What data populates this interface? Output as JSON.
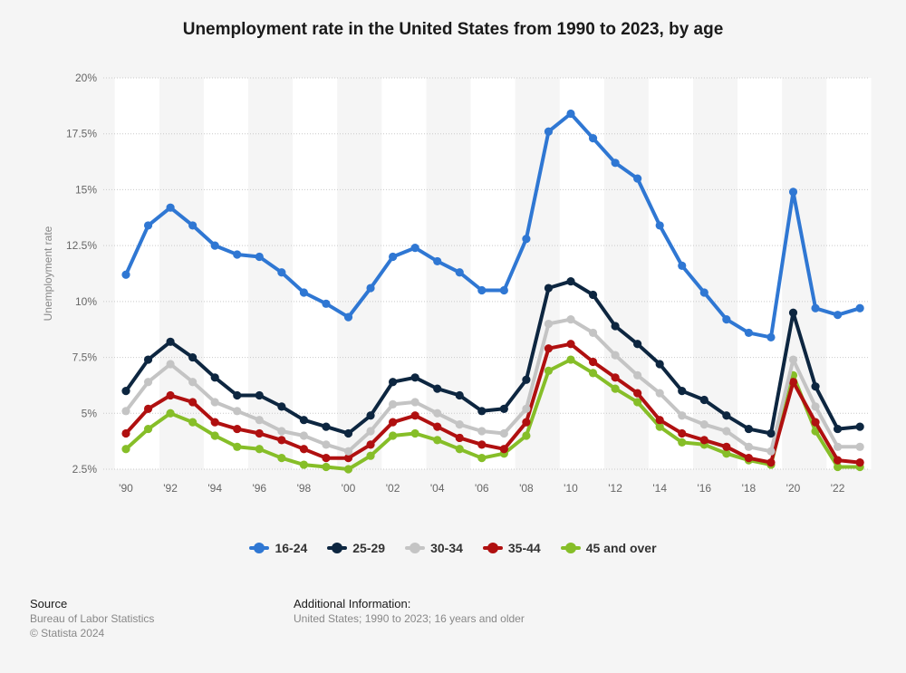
{
  "chart_data": {
    "type": "line",
    "title": "Unemployment rate in the United States from 1990 to 2023, by age",
    "ylabel": "Unemployment rate",
    "ylim": [
      2.5,
      20
    ],
    "yticks": [
      2.5,
      5,
      7.5,
      10,
      12.5,
      15,
      17.5,
      20
    ],
    "ytick_labels": [
      "2.5%",
      "5%",
      "7.5%",
      "10%",
      "12.5%",
      "15%",
      "17.5%",
      "20%"
    ],
    "x": [
      1990,
      1991,
      1992,
      1993,
      1994,
      1995,
      1996,
      1997,
      1998,
      1999,
      2000,
      2001,
      2002,
      2003,
      2004,
      2005,
      2006,
      2007,
      2008,
      2009,
      2010,
      2011,
      2012,
      2013,
      2014,
      2015,
      2016,
      2017,
      2018,
      2019,
      2020,
      2021,
      2022,
      2023
    ],
    "xtick_labels": [
      "'90",
      "'92",
      "'94",
      "'96",
      "'98",
      "'00",
      "'02",
      "'04",
      "'06",
      "'08",
      "'10",
      "'12",
      "'14",
      "'16",
      "'18",
      "'20",
      "'22"
    ],
    "grid": true,
    "legend_position": "bottom",
    "series": [
      {
        "name": "16-24",
        "color": "#2f77d3",
        "values": [
          11.2,
          13.4,
          14.2,
          13.4,
          12.5,
          12.1,
          12.0,
          11.3,
          10.4,
          9.9,
          9.3,
          10.6,
          12.0,
          12.4,
          11.8,
          11.3,
          10.5,
          10.5,
          12.8,
          17.6,
          18.4,
          17.3,
          16.2,
          15.5,
          13.4,
          11.6,
          10.4,
          9.2,
          8.6,
          8.4,
          14.9,
          9.7,
          9.4,
          9.7
        ]
      },
      {
        "name": "25-29",
        "color": "#0d2640",
        "values": [
          6.0,
          7.4,
          8.2,
          7.5,
          6.6,
          5.8,
          5.8,
          5.3,
          4.7,
          4.4,
          4.1,
          4.9,
          6.4,
          6.6,
          6.1,
          5.8,
          5.1,
          5.2,
          6.5,
          10.6,
          10.9,
          10.3,
          8.9,
          8.1,
          7.2,
          6.0,
          5.6,
          4.9,
          4.3,
          4.1,
          9.5,
          6.2,
          4.3,
          4.4
        ]
      },
      {
        "name": "30-34",
        "color": "#c4c4c4",
        "values": [
          5.1,
          6.4,
          7.2,
          6.4,
          5.5,
          5.1,
          4.7,
          4.2,
          4.0,
          3.6,
          3.3,
          4.2,
          5.4,
          5.5,
          5.0,
          4.5,
          4.2,
          4.1,
          5.2,
          9.0,
          9.2,
          8.6,
          7.6,
          6.7,
          5.9,
          4.9,
          4.5,
          4.2,
          3.5,
          3.3,
          7.4,
          5.3,
          3.5,
          3.5
        ]
      },
      {
        "name": "35-44",
        "color": "#b01010",
        "values": [
          4.1,
          5.2,
          5.8,
          5.5,
          4.6,
          4.3,
          4.1,
          3.8,
          3.4,
          3.0,
          3.0,
          3.6,
          4.6,
          4.9,
          4.4,
          3.9,
          3.6,
          3.4,
          4.6,
          7.9,
          8.1,
          7.3,
          6.6,
          5.9,
          4.7,
          4.1,
          3.8,
          3.5,
          3.0,
          2.8,
          6.4,
          4.6,
          2.9,
          2.8
        ]
      },
      {
        "name": "45 and over",
        "color": "#86be28",
        "values": [
          3.4,
          4.3,
          5.0,
          4.6,
          4.0,
          3.5,
          3.4,
          3.0,
          2.7,
          2.6,
          2.5,
          3.1,
          4.0,
          4.1,
          3.8,
          3.4,
          3.0,
          3.2,
          4.0,
          6.9,
          7.4,
          6.8,
          6.1,
          5.5,
          4.4,
          3.7,
          3.6,
          3.2,
          2.9,
          2.7,
          6.7,
          4.2,
          2.6,
          2.6
        ]
      }
    ]
  },
  "footer": {
    "source_heading": "Source",
    "source_line1": "Bureau of Labor Statistics",
    "source_line2": "© Statista 2024",
    "info_heading": "Additional Information:",
    "info_text": "United States; 1990 to 2023; 16 years and older"
  }
}
